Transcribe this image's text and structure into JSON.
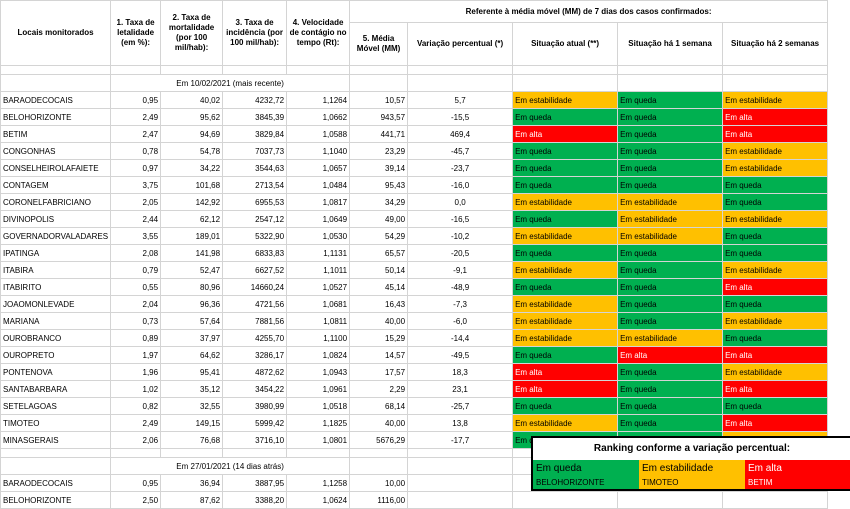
{
  "headers": {
    "locais": "Locais monitorados",
    "c1": "1. Taxa de letalidade (em %):",
    "c2": "2. Taxa de mortalidade (por 100 mil/hab):",
    "c3": "3. Taxa de incidência (por 100 mil/hab):",
    "c4": "4. Velocidade de contágio no tempo (Rt):",
    "group": "Referente à média móvel (MM) de 7 dias  dos casos confirmados:",
    "c5": "5. Média Móvel (MM)",
    "var": "Variação percentual (*)",
    "atual": "Situação atual (**)",
    "sem1": "Situação há 1 semana",
    "sem2": "Situação há 2 semanas"
  },
  "section1": "Em 10/02/2021 (mais recente)",
  "section2": "Em 27/01/2021 (14 dias atrás)",
  "status_colors": {
    "q": "#00b050",
    "e": "#ffc000",
    "a": "#ff0000"
  },
  "rows": [
    {
      "local": "BARAODECOCAIS",
      "c1": "0,95",
      "c2": "40,02",
      "c3": "4232,72",
      "c4": "1,1264",
      "mm": "10,57",
      "var": "5,7",
      "s": [
        [
          "Em estabilidade",
          "e"
        ],
        [
          "Em queda",
          "q"
        ],
        [
          "Em estabilidade",
          "e"
        ]
      ]
    },
    {
      "local": "BELOHORIZONTE",
      "c1": "2,49",
      "c2": "95,62",
      "c3": "3845,39",
      "c4": "1,0662",
      "mm": "943,57",
      "var": "-15,5",
      "s": [
        [
          "Em queda",
          "q"
        ],
        [
          "Em queda",
          "q"
        ],
        [
          "Em alta",
          "a"
        ]
      ]
    },
    {
      "local": "BETIM",
      "c1": "2,47",
      "c2": "94,69",
      "c3": "3829,84",
      "c4": "1,0588",
      "mm": "441,71",
      "var": "469,4",
      "s": [
        [
          "Em alta",
          "a"
        ],
        [
          "Em queda",
          "q"
        ],
        [
          "Em alta",
          "a"
        ]
      ]
    },
    {
      "local": "CONGONHAS",
      "c1": "0,78",
      "c2": "54,78",
      "c3": "7037,73",
      "c4": "1,1040",
      "mm": "23,29",
      "var": "-45,7",
      "s": [
        [
          "Em queda",
          "q"
        ],
        [
          "Em queda",
          "q"
        ],
        [
          "Em estabilidade",
          "e"
        ]
      ]
    },
    {
      "local": "CONSELHEIROLAFAIETE",
      "c1": "0,97",
      "c2": "34,22",
      "c3": "3544,63",
      "c4": "1,0657",
      "mm": "39,14",
      "var": "-23,7",
      "s": [
        [
          "Em queda",
          "q"
        ],
        [
          "Em queda",
          "q"
        ],
        [
          "Em estabilidade",
          "e"
        ]
      ]
    },
    {
      "local": "CONTAGEM",
      "c1": "3,75",
      "c2": "101,68",
      "c3": "2713,54",
      "c4": "1,0484",
      "mm": "95,43",
      "var": "-16,0",
      "s": [
        [
          "Em queda",
          "q"
        ],
        [
          "Em queda",
          "q"
        ],
        [
          "Em queda",
          "q"
        ]
      ]
    },
    {
      "local": "CORONELFABRICIANO",
      "c1": "2,05",
      "c2": "142,92",
      "c3": "6955,53",
      "c4": "1,0817",
      "mm": "34,29",
      "var": "0,0",
      "s": [
        [
          "Em estabilidade",
          "e"
        ],
        [
          "Em estabilidade",
          "e"
        ],
        [
          "Em queda",
          "q"
        ]
      ]
    },
    {
      "local": "DIVINOPOLIS",
      "c1": "2,44",
      "c2": "62,12",
      "c3": "2547,12",
      "c4": "1,0649",
      "mm": "49,00",
      "var": "-16,5",
      "s": [
        [
          "Em queda",
          "q"
        ],
        [
          "Em estabilidade",
          "e"
        ],
        [
          "Em estabilidade",
          "e"
        ]
      ]
    },
    {
      "local": "GOVERNADORVALADARES",
      "c1": "3,55",
      "c2": "189,01",
      "c3": "5322,90",
      "c4": "1,0530",
      "mm": "54,29",
      "var": "-10,2",
      "s": [
        [
          "Em estabilidade",
          "e"
        ],
        [
          "Em estabilidade",
          "e"
        ],
        [
          "Em queda",
          "q"
        ]
      ]
    },
    {
      "local": "IPATINGA",
      "c1": "2,08",
      "c2": "141,98",
      "c3": "6833,83",
      "c4": "1,1131",
      "mm": "65,57",
      "var": "-20,5",
      "s": [
        [
          "Em queda",
          "q"
        ],
        [
          "Em queda",
          "q"
        ],
        [
          "Em queda",
          "q"
        ]
      ]
    },
    {
      "local": "ITABIRA",
      "c1": "0,79",
      "c2": "52,47",
      "c3": "6627,52",
      "c4": "1,1011",
      "mm": "50,14",
      "var": "-9,1",
      "s": [
        [
          "Em estabilidade",
          "e"
        ],
        [
          "Em queda",
          "q"
        ],
        [
          "Em estabilidade",
          "e"
        ]
      ]
    },
    {
      "local": "ITABIRITO",
      "c1": "0,55",
      "c2": "80,96",
      "c3": "14660,24",
      "c4": "1,0527",
      "mm": "45,14",
      "var": "-48,9",
      "s": [
        [
          "Em queda",
          "q"
        ],
        [
          "Em queda",
          "q"
        ],
        [
          "Em alta",
          "a"
        ]
      ]
    },
    {
      "local": "JOAOMONLEVADE",
      "c1": "2,04",
      "c2": "96,36",
      "c3": "4721,56",
      "c4": "1,0681",
      "mm": "16,43",
      "var": "-7,3",
      "s": [
        [
          "Em estabilidade",
          "e"
        ],
        [
          "Em queda",
          "q"
        ],
        [
          "Em queda",
          "q"
        ]
      ]
    },
    {
      "local": "MARIANA",
      "c1": "0,73",
      "c2": "57,64",
      "c3": "7881,56",
      "c4": "1,0811",
      "mm": "40,00",
      "var": "-6,0",
      "s": [
        [
          "Em estabilidade",
          "e"
        ],
        [
          "Em queda",
          "q"
        ],
        [
          "Em estabilidade",
          "e"
        ]
      ]
    },
    {
      "local": "OUROBRANCO",
      "c1": "0,89",
      "c2": "37,97",
      "c3": "4255,70",
      "c4": "1,1100",
      "mm": "15,29",
      "var": "-14,4",
      "s": [
        [
          "Em estabilidade",
          "e"
        ],
        [
          "Em estabilidade",
          "e"
        ],
        [
          "Em queda",
          "q"
        ]
      ]
    },
    {
      "local": "OUROPRETO",
      "c1": "1,97",
      "c2": "64,62",
      "c3": "3286,17",
      "c4": "1,0824",
      "mm": "14,57",
      "var": "-49,5",
      "s": [
        [
          "Em queda",
          "q"
        ],
        [
          "Em alta",
          "a"
        ],
        [
          "Em alta",
          "a"
        ]
      ]
    },
    {
      "local": "PONTENOVA",
      "c1": "1,96",
      "c2": "95,41",
      "c3": "4872,62",
      "c4": "1,0943",
      "mm": "17,57",
      "var": "18,3",
      "s": [
        [
          "Em alta",
          "a"
        ],
        [
          "Em queda",
          "q"
        ],
        [
          "Em estabilidade",
          "e"
        ]
      ]
    },
    {
      "local": "SANTABARBARA",
      "c1": "1,02",
      "c2": "35,12",
      "c3": "3454,22",
      "c4": "1,0961",
      "mm": "2,29",
      "var": "23,1",
      "s": [
        [
          "Em alta",
          "a"
        ],
        [
          "Em queda",
          "q"
        ],
        [
          "Em alta",
          "a"
        ]
      ]
    },
    {
      "local": "SETELAGOAS",
      "c1": "0,82",
      "c2": "32,55",
      "c3": "3980,99",
      "c4": "1,0518",
      "mm": "68,14",
      "var": "-25,7",
      "s": [
        [
          "Em queda",
          "q"
        ],
        [
          "Em queda",
          "q"
        ],
        [
          "Em queda",
          "q"
        ]
      ]
    },
    {
      "local": "TIMOTEO",
      "c1": "2,49",
      "c2": "149,15",
      "c3": "5999,42",
      "c4": "1,1825",
      "mm": "40,00",
      "var": "13,8",
      "s": [
        [
          "Em estabilidade",
          "e"
        ],
        [
          "Em queda",
          "q"
        ],
        [
          "Em alta",
          "a"
        ]
      ]
    },
    {
      "local": "MINASGERAIS",
      "c1": "2,06",
      "c2": "76,68",
      "c3": "3716,10",
      "c4": "1,0801",
      "mm": "5676,29",
      "var": "-17,7",
      "s": [
        [
          "Em queda",
          "q"
        ],
        [
          "Em queda",
          "q"
        ],
        [
          "Em estabilidade",
          "e"
        ]
      ]
    }
  ],
  "rows2": [
    {
      "local": "BARAODECOCAIS",
      "c1": "0,95",
      "c2": "36,94",
      "c3": "3887,95",
      "c4": "1,1258",
      "mm": "10,00"
    },
    {
      "local": "BELOHORIZONTE",
      "c1": "2,50",
      "c2": "87,62",
      "c3": "3388,20",
      "c4": "1,0624",
      "mm": "1116,00"
    }
  ],
  "ranking": {
    "title": "Ranking conforme a variação percentual:",
    "queda": "Em queda",
    "estab": "Em estabilidade",
    "alta": "Em alta",
    "first": [
      "BELOHORIZONTE",
      "TIMOTEO",
      "BETIM"
    ]
  }
}
